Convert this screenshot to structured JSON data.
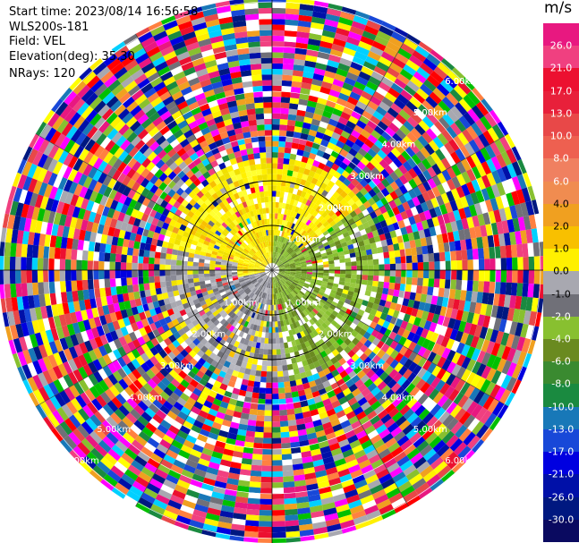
{
  "info": {
    "start_time": "Start time: 2023/08/14 16:56:58",
    "instrument": "WLS200s-181",
    "field": "Field: VEL",
    "elevation": "Elevation(deg): 35.30",
    "nrays": "NRays: 120"
  },
  "colorbar": {
    "unit": "m/s",
    "ticks": [
      "26.0",
      "21.0",
      "17.0",
      "13.0",
      "10.0",
      "8.0",
      "6.0",
      "4.0",
      "2.0",
      "1.0",
      "0.0",
      "-1.0",
      "-2.0",
      "-4.0",
      "-6.0",
      "-8.0",
      "-10.0",
      "-13.0",
      "-17.0",
      "-21.0",
      "-26.0",
      "-30.0"
    ],
    "colors": [
      "#e81880",
      "#f04080",
      "#ec1030",
      "#e8203a",
      "#e84848",
      "#ee6050",
      "#f08060",
      "#f08c50",
      "#f0a020",
      "#f8c000",
      "#fff000",
      "#a8a8b0",
      "#707078",
      "#88c030",
      "#6a8a20",
      "#3a8a30",
      "#1a8a40",
      "#1878b8",
      "#1848d8",
      "#0000e0",
      "#0010a8",
      "#001880",
      "#0a0a60"
    ]
  },
  "range_rings": [
    {
      "label": "1.00km"
    },
    {
      "label": "2.00km"
    },
    {
      "label": "3.00km"
    },
    {
      "label": "4.00km"
    },
    {
      "label": "5.00km"
    },
    {
      "label": "6.00km"
    }
  ]
}
